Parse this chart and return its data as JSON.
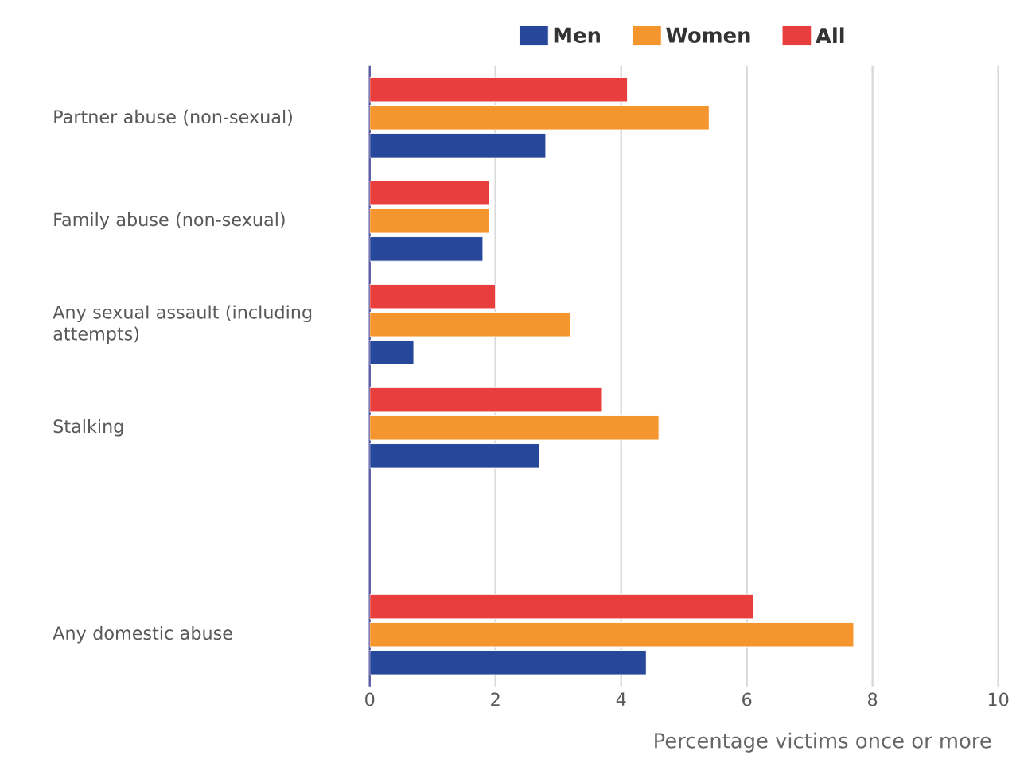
{
  "chart_data": {
    "type": "bar",
    "orientation": "horizontal",
    "categories": [
      "Partner abuse (non-sexual)",
      "Family abuse (non-sexual)",
      "Any sexual assault (including attempts)",
      "Stalking",
      null,
      "Any domestic abuse"
    ],
    "series": [
      {
        "name": "Men",
        "color": "#26479a",
        "values": [
          2.8,
          1.8,
          0.7,
          2.7,
          null,
          4.4
        ]
      },
      {
        "name": "Women",
        "color": "#f5952d",
        "values": [
          5.4,
          1.9,
          3.2,
          4.6,
          null,
          7.7
        ]
      },
      {
        "name": "All",
        "color": "#e83e3e",
        "values": [
          4.1,
          1.9,
          2.0,
          3.7,
          null,
          6.1
        ]
      }
    ],
    "xlim": [
      0,
      10
    ],
    "xticks": [
      0,
      2,
      4,
      6,
      8,
      10
    ],
    "xlabel": "Percentage victims once or more",
    "grid": "x",
    "legend": "top"
  }
}
